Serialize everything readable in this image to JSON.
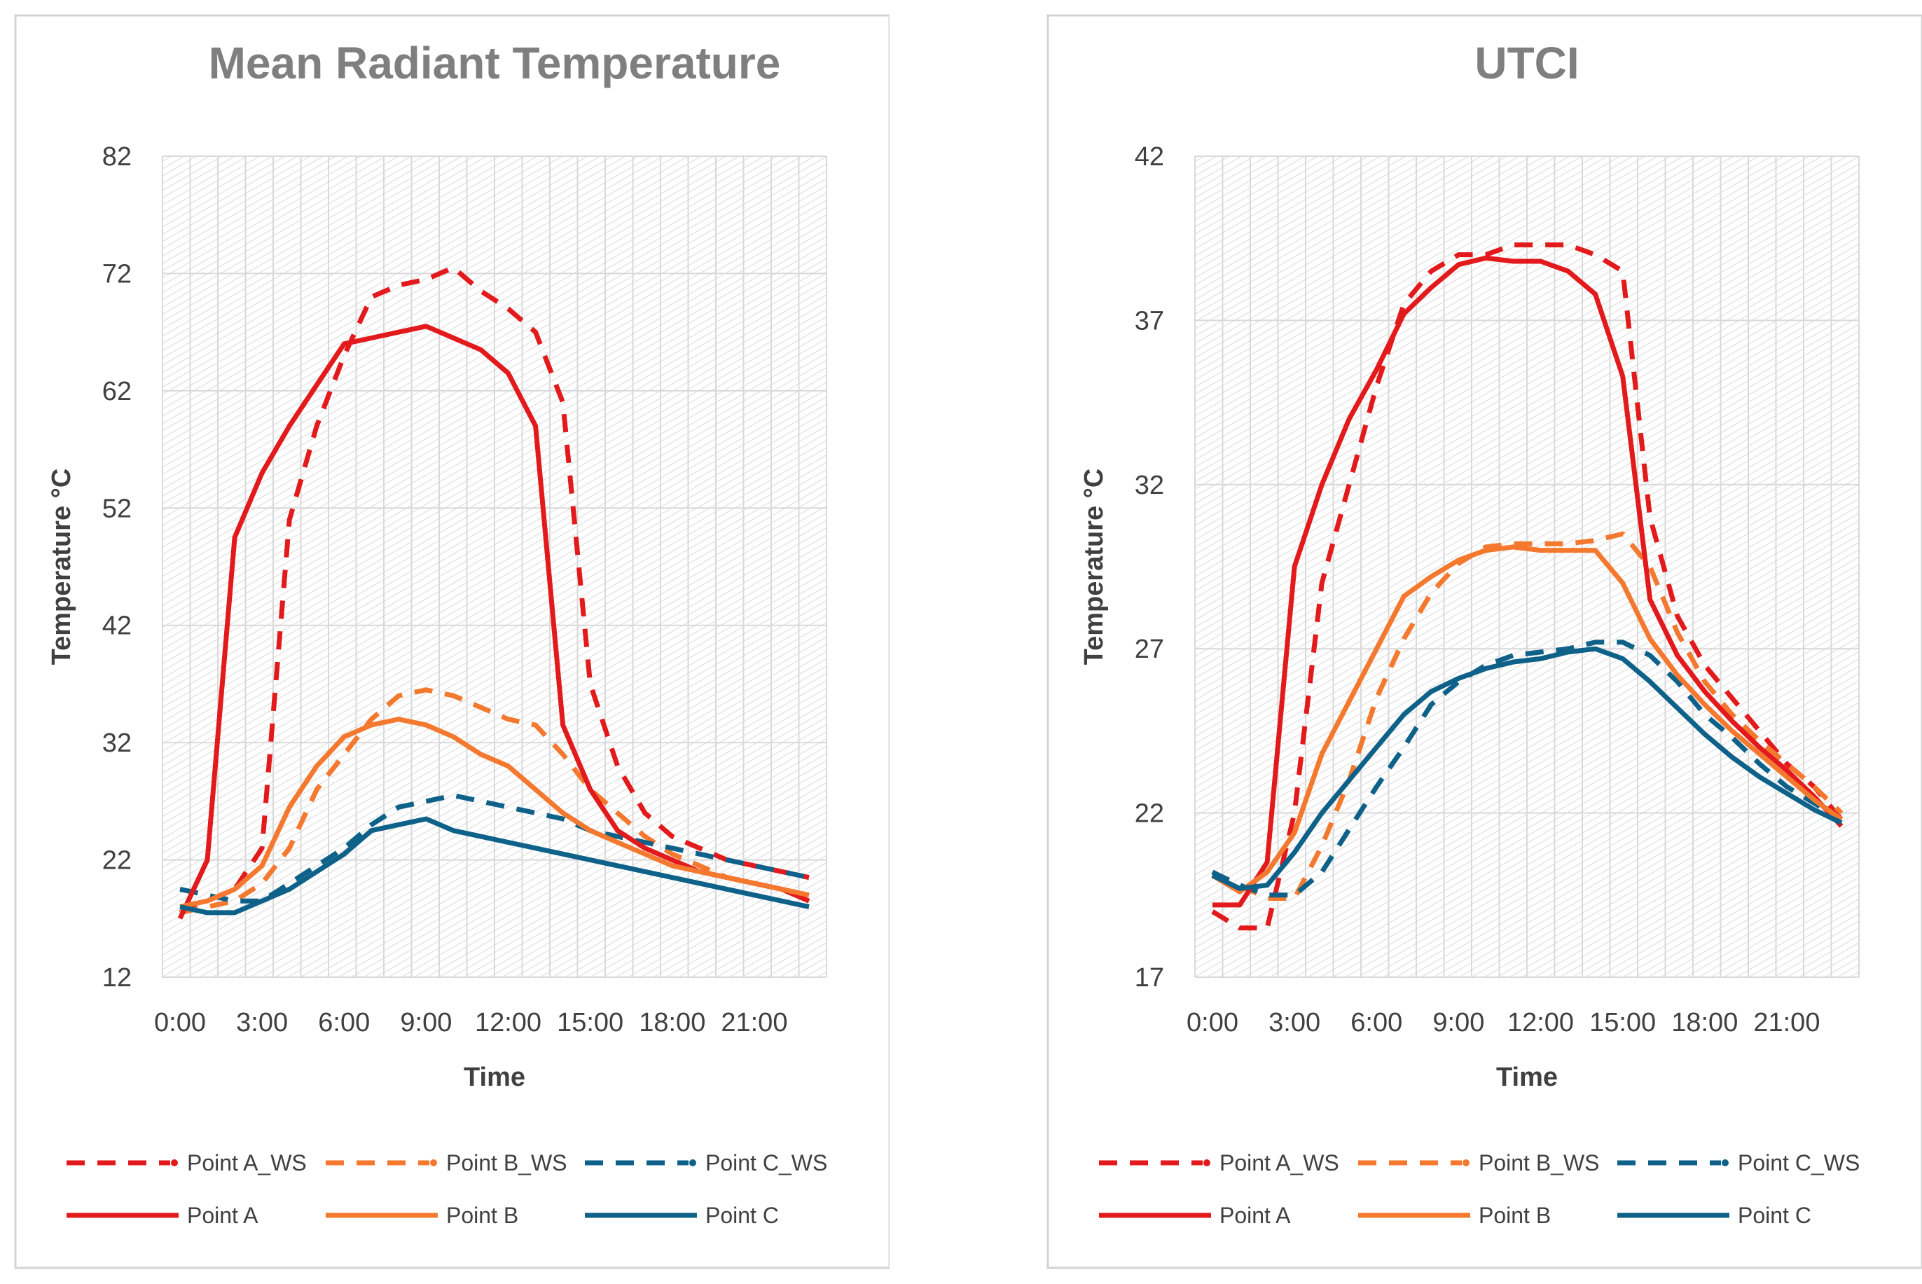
{
  "charts": [
    {
      "type": "line",
      "title": "Mean Radiant Temperature",
      "xlabel": "Time",
      "ylabel": "Temperature °C",
      "ylim": [
        12,
        82
      ],
      "yticks": [
        12,
        22,
        32,
        42,
        52,
        62,
        72,
        82
      ],
      "xticks": [
        {
          "pos": 0,
          "label": "0:00"
        },
        {
          "pos": 3,
          "label": "3:00"
        },
        {
          "pos": 6,
          "label": "6:00"
        },
        {
          "pos": 9,
          "label": "9:00"
        },
        {
          "pos": 12,
          "label": "12:00"
        },
        {
          "pos": 15,
          "label": "15:00"
        },
        {
          "pos": 18,
          "label": "18:00"
        },
        {
          "pos": 21,
          "label": "21:00"
        }
      ],
      "x": [
        0,
        1,
        2,
        3,
        4,
        5,
        6,
        7,
        8,
        9,
        10,
        11,
        12,
        13,
        14,
        15,
        16,
        17,
        18,
        19,
        20,
        21,
        22,
        23
      ],
      "series": [
        {
          "name": "Point A_WS",
          "color": "#e31a1c",
          "dash": true,
          "values": [
            17.5,
            18.5,
            19.5,
            23,
            51,
            59,
            65,
            70,
            71,
            71.5,
            72.5,
            70.5,
            69,
            67,
            61,
            37,
            30,
            26,
            24,
            23,
            22,
            21.5,
            21,
            20.5
          ]
        },
        {
          "name": "Point B_WS",
          "color": "#f4782e",
          "dash": true,
          "values": [
            17.5,
            18,
            18.5,
            20,
            23,
            28,
            31,
            34,
            36,
            36.5,
            36,
            35,
            34,
            33.5,
            31,
            28,
            26,
            24,
            22.5,
            21.5,
            20.5,
            20,
            19.5,
            19
          ]
        },
        {
          "name": "Point C_WS",
          "color": "#0e6189",
          "dash": true,
          "values": [
            19.5,
            19,
            18.5,
            18.5,
            20,
            21.5,
            23,
            25,
            26.5,
            27,
            27.5,
            27,
            26.5,
            26,
            25.5,
            24.5,
            24,
            23.5,
            23,
            22.5,
            22,
            21.5,
            21,
            20.5
          ]
        },
        {
          "name": "Point A",
          "color": "#e31a1c",
          "dash": false,
          "values": [
            17,
            22,
            49.5,
            55,
            59,
            62.5,
            66,
            66.5,
            67,
            67.5,
            66.5,
            65.5,
            63.5,
            59,
            33.5,
            28,
            24.5,
            23,
            22,
            21,
            20.5,
            20,
            19.5,
            18.5
          ]
        },
        {
          "name": "Point B",
          "color": "#f4782e",
          "dash": false,
          "values": [
            18,
            18.5,
            19.5,
            21.5,
            26.5,
            30,
            32.5,
            33.5,
            34,
            33.5,
            32.5,
            31,
            30,
            28,
            26,
            24.5,
            23.5,
            22.5,
            21.5,
            21,
            20.5,
            20,
            19.5,
            19
          ]
        },
        {
          "name": "Point C",
          "color": "#0e6189",
          "dash": false,
          "values": [
            18,
            17.5,
            17.5,
            18.5,
            19.5,
            21,
            22.5,
            24.5,
            25,
            25.5,
            24.5,
            24,
            23.5,
            23,
            22.5,
            22,
            21.5,
            21,
            20.5,
            20,
            19.5,
            19,
            18.5,
            18
          ]
        }
      ]
    },
    {
      "type": "line",
      "title": "UTCI",
      "xlabel": "Time",
      "ylabel": "Temperature °C",
      "ylim": [
        17,
        42
      ],
      "yticks": [
        17,
        22,
        27,
        32,
        37,
        42
      ],
      "xticks": [
        {
          "pos": 0,
          "label": "0:00"
        },
        {
          "pos": 3,
          "label": "3:00"
        },
        {
          "pos": 6,
          "label": "6:00"
        },
        {
          "pos": 9,
          "label": "9:00"
        },
        {
          "pos": 12,
          "label": "12:00"
        },
        {
          "pos": 15,
          "label": "15:00"
        },
        {
          "pos": 18,
          "label": "18:00"
        },
        {
          "pos": 21,
          "label": "21:00"
        }
      ],
      "x": [
        0,
        1,
        2,
        3,
        4,
        5,
        6,
        7,
        8,
        9,
        10,
        11,
        12,
        13,
        14,
        15,
        16,
        17,
        18,
        19,
        20,
        21,
        22,
        23
      ],
      "series": [
        {
          "name": "Point A_WS",
          "color": "#e31a1c",
          "dash": true,
          "values": [
            19,
            18.5,
            18.5,
            22,
            29,
            32,
            35,
            37.5,
            38.5,
            39,
            39,
            39.3,
            39.3,
            39.3,
            39,
            38.5,
            31,
            28,
            26.5,
            25.5,
            24.5,
            23.5,
            22.8,
            21.8
          ]
        },
        {
          "name": "Point B_WS",
          "color": "#f4782e",
          "dash": true,
          "values": [
            20.2,
            19.8,
            19.4,
            19.4,
            21,
            23,
            25.5,
            27.3,
            28.7,
            29.6,
            30.1,
            30.2,
            30.2,
            30.2,
            30.3,
            30.5,
            29.5,
            27.5,
            26,
            25,
            24.2,
            23.5,
            22.8,
            22
          ]
        },
        {
          "name": "Point C_WS",
          "color": "#0e6189",
          "dash": true,
          "values": [
            20.2,
            19.8,
            19.5,
            19.5,
            20.2,
            21.5,
            22.8,
            24,
            25.3,
            26,
            26.5,
            26.8,
            26.9,
            27,
            27.2,
            27.2,
            26.8,
            26,
            25,
            24.3,
            23.5,
            22.8,
            22.3,
            21.8
          ]
        },
        {
          "name": "Point A",
          "color": "#e31a1c",
          "dash": false,
          "values": [
            19.2,
            19.2,
            20.5,
            29.5,
            32,
            34,
            35.5,
            37.2,
            38,
            38.7,
            38.9,
            38.8,
            38.8,
            38.5,
            37.8,
            35.3,
            28.5,
            26.8,
            25.7,
            24.8,
            24,
            23.3,
            22.5,
            21.6
          ]
        },
        {
          "name": "Point B",
          "color": "#f4782e",
          "dash": false,
          "values": [
            20.1,
            19.6,
            20.2,
            21.4,
            23.8,
            25.4,
            27,
            28.6,
            29.2,
            29.7,
            30,
            30.1,
            30,
            30,
            30,
            29,
            27.3,
            26.2,
            25.3,
            24.5,
            23.8,
            23.1,
            22.4,
            21.8
          ]
        },
        {
          "name": "Point C",
          "color": "#0e6189",
          "dash": false,
          "values": [
            20.1,
            19.7,
            19.8,
            20.8,
            22,
            23,
            24,
            25,
            25.7,
            26.1,
            26.4,
            26.6,
            26.7,
            26.9,
            27,
            26.7,
            26,
            25.2,
            24.4,
            23.7,
            23.1,
            22.6,
            22.1,
            21.7
          ]
        }
      ]
    }
  ]
}
